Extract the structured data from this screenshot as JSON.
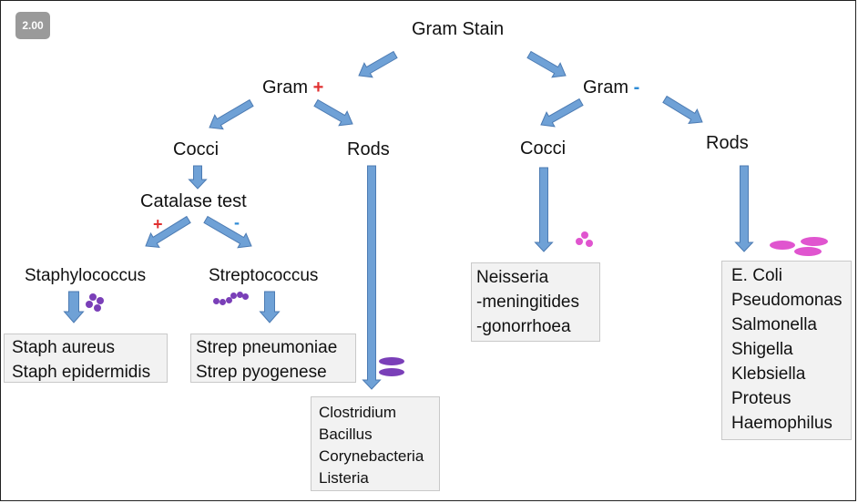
{
  "badge": "2.00",
  "colors": {
    "arrow": "#6fa1d6",
    "arrow_stroke": "#4c7bb3",
    "plus": "#e03030",
    "minus": "#2e8bd6",
    "purple": "#7a3fb8",
    "pink": "#e055cf",
    "box_bg": "#f2f2f2"
  },
  "root": "Gram Stain",
  "gram_pos": {
    "label": "Gram",
    "sign": "+",
    "cocci": "Cocci",
    "rods": "Rods",
    "catalase": "Catalase test",
    "catalase_plus": "+",
    "catalase_minus": "-",
    "staph": "Staphylococcus",
    "strep": "Streptococcus",
    "staph_list": [
      "Staph aureus",
      "Staph epidermidis"
    ],
    "strep_list": [
      "Strep pneumoniae",
      "Strep pyogenese"
    ],
    "rods_list": [
      "Clostridium",
      "Bacillus",
      "Corynebacteria",
      "Listeria"
    ]
  },
  "gram_neg": {
    "label": "Gram",
    "sign": "-",
    "cocci": "Cocci",
    "rods": "Rods",
    "cocci_list": [
      "Neisseria",
      "-meningitides",
      "-gonorrhoea"
    ],
    "rods_list": [
      "E. Coli",
      "Pseudomonas",
      "Salmonella",
      "Shigella",
      "Klebsiella",
      "Proteus",
      "Haemophilus"
    ]
  }
}
